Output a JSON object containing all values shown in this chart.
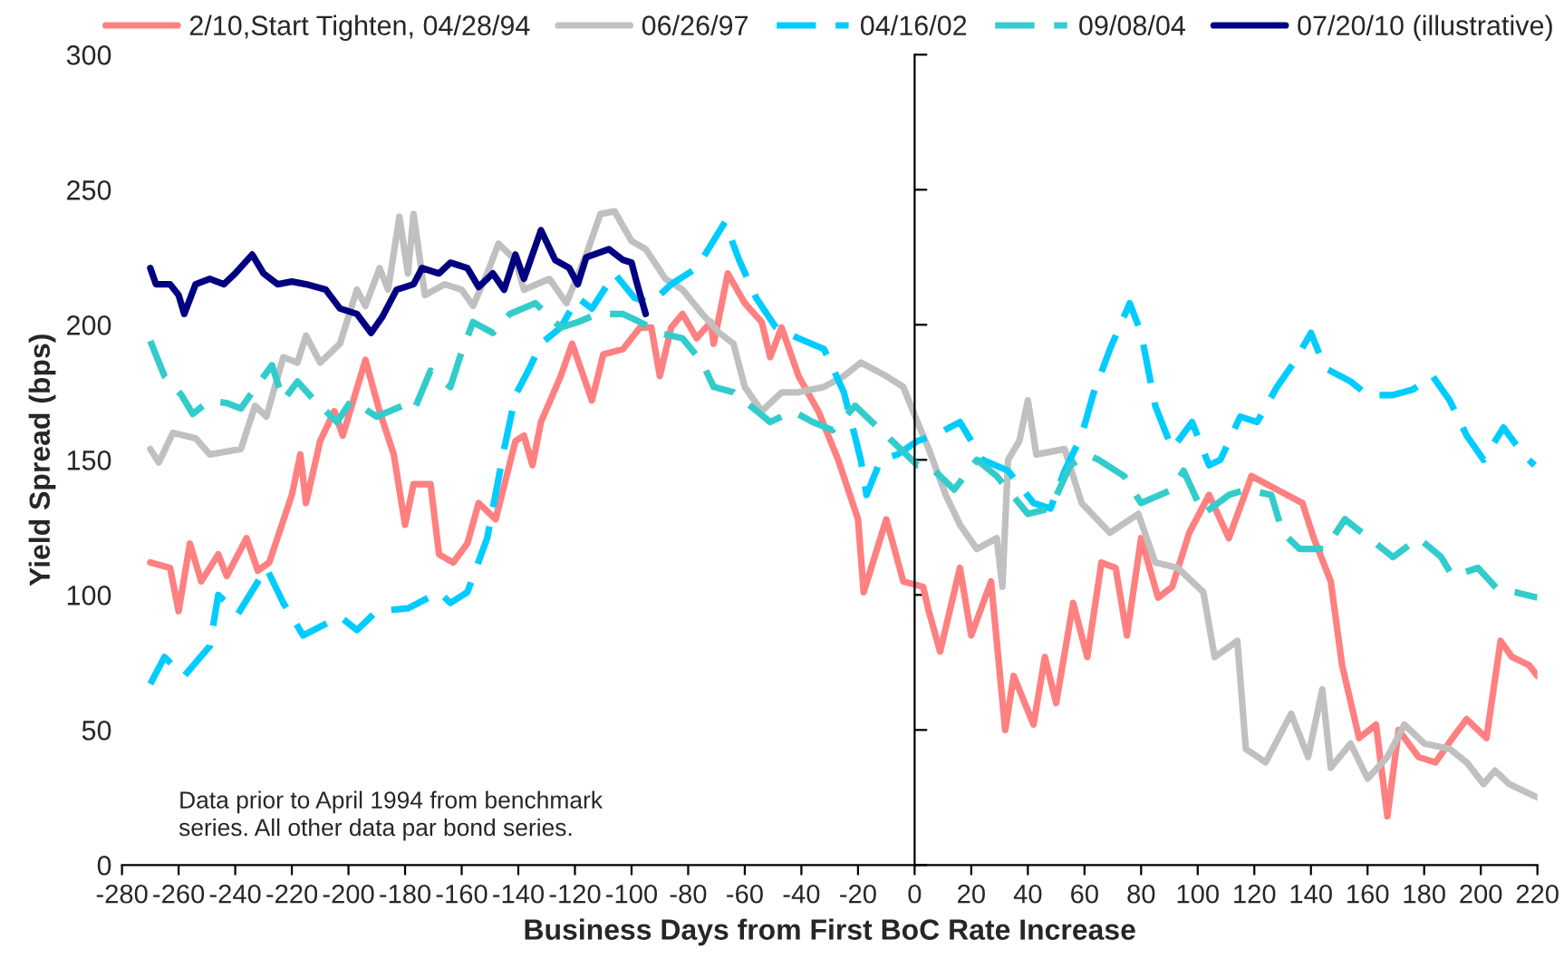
{
  "chart_data": {
    "type": "line",
    "xlabel": "Business Days from First BoC Rate Increase",
    "ylabel": "Yield Spread (bps)",
    "xlim": [
      -280,
      220
    ],
    "xticks": [
      -280,
      -260,
      -240,
      -220,
      -200,
      -180,
      -160,
      -140,
      -120,
      -100,
      -80,
      -60,
      -40,
      -20,
      0,
      20,
      40,
      60,
      80,
      100,
      120,
      140,
      160,
      180,
      200,
      220
    ],
    "ylim": [
      0,
      300
    ],
    "yticks": [
      0,
      50,
      100,
      150,
      200,
      250,
      300
    ],
    "legend": "top",
    "marker": "none",
    "annotations": [
      "Data prior to April 1994 from benchmark\nseries. All other data par bond series."
    ],
    "series": [
      {
        "name": "2/10,Start Tighten, 04/28/94",
        "color": "#ff8080",
        "line_style": "solid",
        "x": [
          -270,
          -263,
          -260,
          -256,
          -252,
          -246,
          -243,
          -236,
          -232,
          -228,
          -220,
          -217,
          -215,
          -210,
          -205,
          -202,
          -194,
          -189,
          -184,
          -180,
          -177,
          -171,
          -168,
          -163,
          -158,
          -154,
          -148,
          -141,
          -138,
          -135,
          -132,
          -125,
          -121,
          -114,
          -110,
          -103,
          -97,
          -93,
          -90,
          -86,
          -82,
          -77,
          -72,
          -71,
          -66,
          -60,
          -54,
          -51,
          -47,
          -41,
          -34,
          -27,
          -20,
          -18,
          -10,
          -4,
          3,
          5,
          9,
          16,
          20,
          27,
          32,
          35,
          42,
          46,
          50,
          56,
          61,
          66,
          71,
          75,
          80,
          86,
          91,
          97,
          104,
          111,
          119,
          128,
          137,
          141,
          147,
          151,
          157,
          163,
          167,
          171,
          178,
          184,
          190,
          195,
          202,
          207,
          211,
          217,
          220
        ],
        "values": [
          112,
          110,
          94,
          119,
          105,
          115,
          107,
          121,
          109,
          112,
          137,
          152,
          134,
          157,
          168,
          159,
          187,
          168,
          152,
          126,
          141,
          141,
          115,
          112,
          119,
          134,
          128,
          157,
          159,
          148,
          164,
          181,
          193,
          172,
          189,
          191,
          199,
          199,
          181,
          199,
          204,
          195,
          201,
          193,
          219,
          208,
          201,
          188,
          199,
          181,
          168,
          150,
          128,
          101,
          128,
          105,
          103,
          94,
          79,
          110,
          85,
          105,
          50,
          70,
          52,
          77,
          60,
          97,
          77,
          112,
          110,
          85,
          121,
          99,
          103,
          123,
          137,
          121,
          144,
          139,
          134,
          121,
          105,
          74,
          47,
          52,
          18,
          50,
          40,
          38,
          47,
          54,
          47,
          83,
          77,
          74,
          70
        ]
      },
      {
        "name": "06/26/97",
        "color": "#c0c0c0",
        "line_style": "solid",
        "x": [
          -270,
          -267,
          -262,
          -254,
          -249,
          -238,
          -233,
          -229,
          -223,
          -218,
          -215,
          -210,
          -203,
          -197,
          -194,
          -189,
          -186,
          -182,
          -179,
          -177,
          -173,
          -166,
          -160,
          -156,
          -151,
          -147,
          -141,
          -138,
          -129,
          -123,
          -116,
          -111,
          -106,
          -100,
          -95,
          -88,
          -82,
          -75,
          -69,
          -64,
          -60,
          -54,
          -47,
          -41,
          -32,
          -25,
          -19,
          -10,
          -4,
          1,
          5,
          11,
          16,
          22,
          29,
          31,
          33,
          37,
          40,
          43,
          53,
          59,
          69,
          79,
          85,
          93,
          102,
          106,
          114,
          117,
          124,
          133,
          139,
          144,
          147,
          154,
          160,
          167,
          173,
          180,
          189,
          195,
          201,
          205,
          210,
          220
        ],
        "values": [
          154,
          149,
          160,
          158,
          152,
          154,
          170,
          166,
          188,
          186,
          196,
          186,
          193,
          213,
          207,
          221,
          213,
          240,
          219,
          241,
          211,
          215,
          213,
          207,
          219,
          230,
          224,
          213,
          217,
          208,
          226,
          241,
          242,
          231,
          228,
          217,
          213,
          204,
          197,
          193,
          177,
          168,
          175,
          175,
          177,
          181,
          186,
          181,
          177,
          164,
          154,
          137,
          126,
          117,
          121,
          103,
          150,
          157,
          172,
          152,
          154,
          134,
          123,
          130,
          112,
          110,
          101,
          77,
          83,
          43,
          38,
          56,
          40,
          65,
          36,
          45,
          32,
          40,
          52,
          45,
          43,
          38,
          30,
          35,
          30,
          25
        ]
      },
      {
        "name": "04/16/02",
        "color": "#00ccff",
        "line_style": "dashed",
        "x": [
          -270,
          -265,
          -258,
          -249,
          -246,
          -239,
          -229,
          -223,
          -216,
          -203,
          -197,
          -190,
          -179,
          -168,
          -164,
          -158,
          -151,
          -145,
          -141,
          -136,
          -132,
          -125,
          -119,
          -114,
          -106,
          -99,
          -93,
          -86,
          -77,
          -67,
          -62,
          -56,
          -49,
          -41,
          -32,
          -25,
          -19,
          -17,
          -12,
          -6,
          1,
          7,
          16,
          24,
          33,
          42,
          48,
          53,
          59,
          63,
          69,
          76,
          80,
          85,
          91,
          98,
          104,
          108,
          115,
          121,
          128,
          134,
          140,
          145,
          154,
          160,
          169,
          176,
          183,
          189,
          195,
          201,
          208,
          215,
          219
        ],
        "values": [
          67,
          77,
          70,
          81,
          100,
          93,
          110,
          97,
          85,
          92,
          87,
          94,
          95,
          101,
          97,
          101,
          121,
          154,
          174,
          184,
          193,
          199,
          210,
          206,
          219,
          210,
          208,
          215,
          221,
          238,
          224,
          210,
          199,
          195,
          191,
          175,
          150,
          137,
          150,
          152,
          157,
          159,
          164,
          150,
          146,
          134,
          132,
          146,
          159,
          174,
          191,
          208,
          197,
          170,
          154,
          164,
          148,
          150,
          166,
          164,
          177,
          186,
          197,
          184,
          179,
          174,
          174,
          176,
          181,
          172,
          159,
          150,
          162,
          152,
          148
        ]
      },
      {
        "name": "09/08/04",
        "color": "#33cccc",
        "line_style": "dashed",
        "x": [
          -270,
          -265,
          -259,
          -255,
          -249,
          -243,
          -238,
          -232,
          -227,
          -223,
          -218,
          -212,
          -204,
          -199,
          -190,
          -181,
          -177,
          -171,
          -164,
          -160,
          -156,
          -149,
          -143,
          -134,
          -125,
          -119,
          -112,
          -103,
          -97,
          -90,
          -82,
          -75,
          -71,
          -64,
          -58,
          -51,
          -43,
          -36,
          -29,
          -21,
          -15,
          -8,
          1,
          5,
          14,
          22,
          29,
          40,
          48,
          55,
          61,
          65,
          74,
          80,
          91,
          95,
          102,
          111,
          117,
          126,
          130,
          136,
          145,
          152,
          163,
          169,
          178,
          186,
          190,
          199,
          206,
          212,
          220
        ],
        "values": [
          194,
          181,
          174,
          167,
          172,
          171,
          169,
          178,
          185,
          172,
          179,
          172,
          164,
          172,
          166,
          170,
          168,
          183,
          177,
          190,
          201,
          197,
          204,
          208,
          199,
          201,
          204,
          204,
          201,
          197,
          195,
          186,
          177,
          175,
          170,
          164,
          168,
          164,
          161,
          170,
          164,
          157,
          148,
          148,
          139,
          150,
          144,
          130,
          132,
          148,
          152,
          150,
          144,
          134,
          139,
          146,
          130,
          137,
          139,
          137,
          123,
          117,
          117,
          128,
          119,
          114,
          121,
          114,
          107,
          110,
          102,
          101,
          99
        ]
      },
      {
        "name": "07/20/10 (illustrative)",
        "color": "#000080",
        "line_style": "solid",
        "x": [
          -270,
          -268,
          -263,
          -260,
          -258,
          -254,
          -249,
          -244,
          -240,
          -234,
          -230,
          -225,
          -220,
          -215,
          -208,
          -203,
          -197,
          -192,
          -188,
          -183,
          -177,
          -174,
          -168,
          -164,
          -158,
          -154,
          -149,
          -145,
          -141,
          -138,
          -132,
          -127,
          -122,
          -119,
          -116,
          -108,
          -103,
          -100,
          -98,
          -95
        ],
        "values": [
          221,
          215,
          215,
          211,
          204,
          215,
          217,
          215,
          219,
          226,
          219,
          215,
          216,
          215,
          213,
          206,
          204,
          197,
          203,
          213,
          215,
          221,
          219,
          223,
          221,
          214,
          219,
          213,
          226,
          217,
          235,
          224,
          221,
          215,
          225,
          228,
          224,
          223,
          215,
          204
        ]
      }
    ]
  }
}
